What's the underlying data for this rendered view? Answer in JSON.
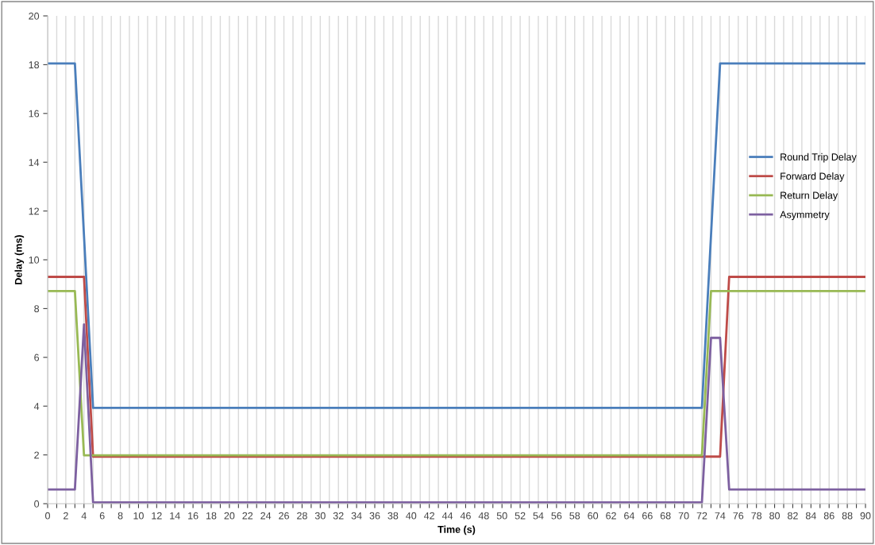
{
  "chart_data": {
    "type": "line",
    "xlabel": "Time (s)",
    "ylabel": "Delay (ms)",
    "xlim": [
      0,
      90
    ],
    "ylim": [
      0,
      20
    ],
    "xticks": [
      0,
      {
        "value": 1,
        "label": null
      },
      2,
      {
        "value": 3,
        "label": null
      },
      4,
      {
        "value": 5,
        "label": null
      },
      6,
      {
        "value": 7,
        "label": null
      },
      8,
      {
        "value": 9,
        "label": null
      },
      10,
      {
        "value": 11,
        "label": null
      },
      12,
      {
        "value": 13,
        "label": null
      },
      14,
      {
        "value": 15,
        "label": null
      },
      16,
      {
        "value": 17,
        "label": null
      },
      18,
      {
        "value": 19,
        "label": null
      },
      20,
      {
        "value": 21,
        "label": null
      },
      22,
      {
        "value": 23,
        "label": null
      },
      24,
      {
        "value": 25,
        "label": null
      },
      26,
      {
        "value": 27,
        "label": null
      },
      28,
      {
        "value": 29,
        "label": null
      },
      30,
      {
        "value": 31,
        "label": null
      },
      32,
      {
        "value": 33,
        "label": null
      },
      34,
      {
        "value": 35,
        "label": null
      },
      36,
      {
        "value": 37,
        "label": null
      },
      38,
      {
        "value": 39,
        "label": null
      },
      40,
      {
        "value": 41,
        "label": null
      },
      42,
      {
        "value": 43,
        "label": null
      },
      44,
      {
        "value": 45,
        "label": null
      },
      46,
      {
        "value": 47,
        "label": null
      },
      48,
      {
        "value": 49,
        "label": null
      },
      50,
      {
        "value": 51,
        "label": null
      },
      52,
      {
        "value": 53,
        "label": null
      },
      54,
      {
        "value": 55,
        "label": null
      },
      56,
      {
        "value": 57,
        "label": null
      },
      58,
      {
        "value": 59,
        "label": null
      },
      60,
      {
        "value": 61,
        "label": null
      },
      62,
      {
        "value": 63,
        "label": null
      },
      64,
      {
        "value": 65,
        "label": null
      },
      66,
      {
        "value": 67,
        "label": null
      },
      68,
      {
        "value": 69,
        "label": null
      },
      70,
      {
        "value": 71,
        "label": null
      },
      72,
      {
        "value": 73,
        "label": null
      },
      74,
      {
        "value": 75,
        "label": null
      },
      76,
      {
        "value": 77,
        "label": null
      },
      78,
      {
        "value": 79,
        "label": null
      },
      80,
      {
        "value": 81,
        "label": null
      },
      82,
      {
        "value": 83,
        "label": null
      },
      84,
      {
        "value": 85,
        "label": null
      },
      86,
      {
        "value": 87,
        "label": null
      },
      88,
      {
        "value": 89,
        "label": null
      },
      90
    ],
    "yticks": [
      0,
      2,
      4,
      6,
      8,
      10,
      12,
      14,
      16,
      18,
      20
    ],
    "grid": "x",
    "legend": "right",
    "marker": "none",
    "line_style": "solid",
    "series": [
      {
        "name": "Round Trip Delay",
        "color": "#4a7ebb",
        "x": [
          0,
          3,
          5,
          72,
          74,
          90
        ],
        "values": [
          18.05,
          18.05,
          3.93,
          3.93,
          18.05,
          18.05
        ]
      },
      {
        "name": "Forward Delay",
        "color": "#be4b48",
        "x": [
          0,
          4,
          5,
          74,
          75,
          90
        ],
        "values": [
          9.3,
          9.3,
          1.93,
          1.93,
          9.3,
          9.3
        ]
      },
      {
        "name": "Return Delay",
        "color": "#98b954",
        "x": [
          0,
          3,
          4,
          72,
          73,
          90
        ],
        "values": [
          8.72,
          8.72,
          1.98,
          1.98,
          8.72,
          8.72
        ]
      },
      {
        "name": "Asymmetry",
        "color": "#7d60a0",
        "x": [
          0,
          3,
          4,
          5,
          72,
          73,
          74,
          75,
          90
        ],
        "values": [
          0.58,
          0.58,
          7.35,
          0.05,
          0.05,
          6.8,
          6.8,
          0.58,
          0.58
        ]
      }
    ]
  }
}
